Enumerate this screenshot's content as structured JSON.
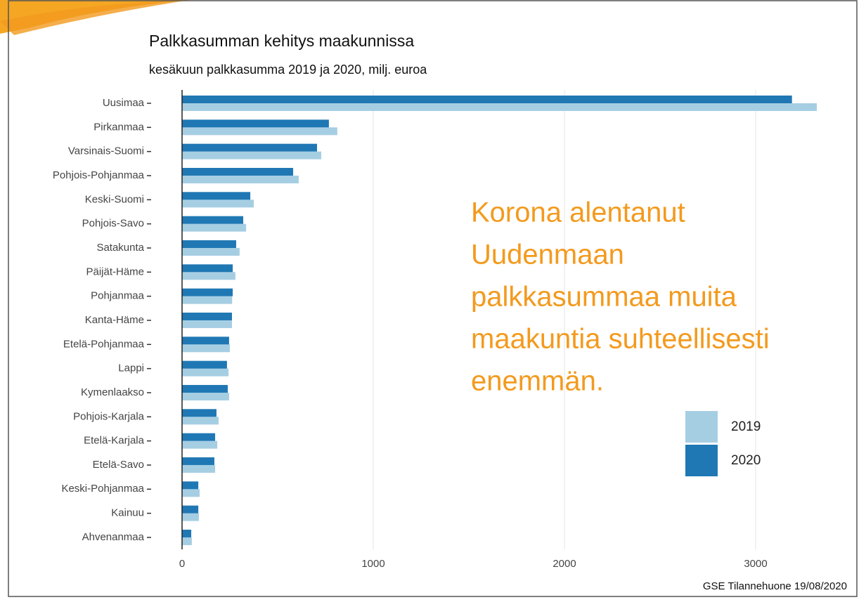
{
  "chart_data": {
    "type": "bar",
    "orientation": "horizontal",
    "title": "Palkkasumman kehitys maakunnissa",
    "subtitle": "kesäkuun palkkasumma 2019 ja 2020, milj. euroa",
    "categories": [
      "Uusimaa",
      "Pirkanmaa",
      "Varsinais-Suomi",
      "Pohjois-Pohjanmaa",
      "Keski-Suomi",
      "Pohjois-Savo",
      "Satakunta",
      "Päijät-Häme",
      "Pohjanmaa",
      "Kanta-Häme",
      "Etelä-Pohjanmaa",
      "Lappi",
      "Kymenlaakso",
      "Pohjois-Karjala",
      "Etelä-Karjala",
      "Etelä-Savo",
      "Keski-Pohjanmaa",
      "Kainuu",
      "Ahvenanmaa"
    ],
    "series": [
      {
        "name": "2019",
        "color": "#a6cee3",
        "values": [
          3320,
          812,
          728,
          610,
          375,
          335,
          301,
          279,
          262,
          261,
          250,
          243,
          246,
          191,
          184,
          173,
          92,
          88,
          51
        ]
      },
      {
        "name": "2020",
        "color": "#1f78b4",
        "values": [
          3190,
          768,
          706,
          581,
          357,
          320,
          283,
          265,
          265,
          261,
          246,
          235,
          239,
          180,
          173,
          169,
          85,
          85,
          48
        ]
      }
    ],
    "xlim": [
      -150,
      3500
    ],
    "xticks": [
      0,
      1000,
      2000,
      3000
    ],
    "grid": true,
    "annotation": [
      "Korona alentanut",
      "Uudenmaan",
      "palkkasummaa muita",
      "maakuntia suhteellisesti",
      "enemmän."
    ],
    "annotation_color": "#f39a1e",
    "caption": "GSE Tilannehuone 19/08/2020"
  }
}
